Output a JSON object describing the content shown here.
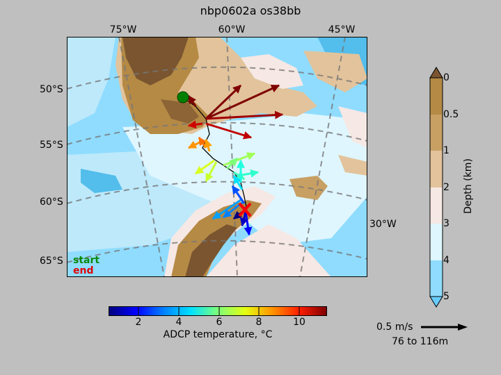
{
  "title": "nbp0602a os38bb",
  "map": {
    "lon_labels": [
      "75°W",
      "60°W",
      "45°W"
    ],
    "lat_labels": [
      "50°S",
      "55°S",
      "60°S",
      "65°S"
    ],
    "ocean_label": "30°W",
    "legend": {
      "start": "start",
      "end": "end"
    },
    "colors": {
      "start_marker": "#007f00",
      "end_marker": "#ff0000"
    }
  },
  "temperature_colorbar": {
    "label": "ADCP temperature, °C",
    "ticks": [
      "2",
      "4",
      "6",
      "8",
      "10"
    ],
    "range": [
      0.2,
      11.6
    ],
    "colormap": "jet"
  },
  "depth_colorbar": {
    "label": "Depth (km)",
    "ticks": [
      "0",
      "0.5",
      "1",
      "2",
      "3",
      "4",
      "5"
    ],
    "colors": [
      "#b58a45",
      "#c8a064",
      "#e2c39b",
      "#f6e8e4",
      "#dff6ff",
      "#bde9fb",
      "#8fdcff"
    ]
  },
  "quiver_key": {
    "speed": "0.5 m/s",
    "depth_range": "76 to 116m"
  }
}
